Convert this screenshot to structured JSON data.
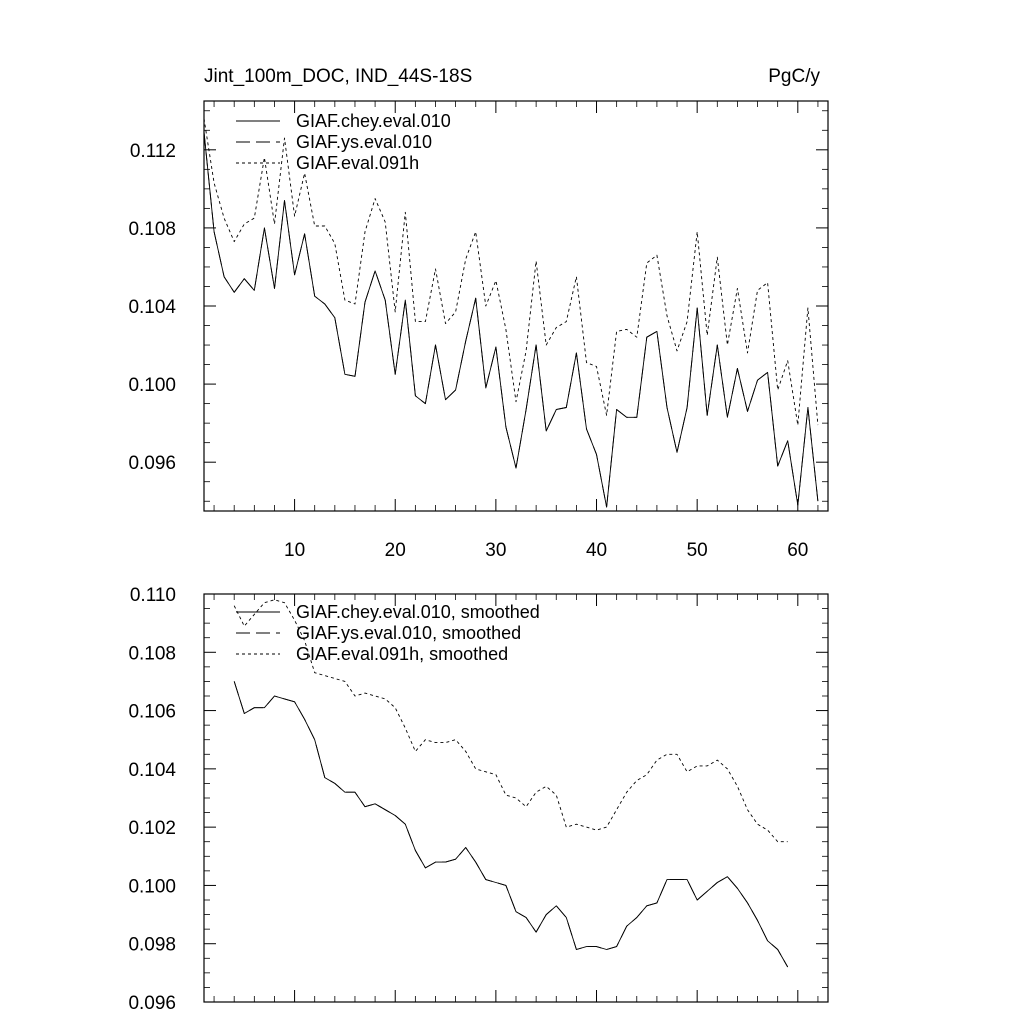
{
  "header": {
    "left_title": "Jint_100m_DOC, IND_44S-18S",
    "right_title": "PgC/y"
  },
  "chart_data": [
    {
      "type": "line",
      "title": "Jint_100m_DOC, IND_44S-18S",
      "units": "PgC/y",
      "xlabel": "",
      "ylabel": "",
      "xlim": [
        1,
        63
      ],
      "ylim": [
        0.0935,
        0.1145
      ],
      "xticks": [
        10,
        20,
        30,
        40,
        50,
        60
      ],
      "xtick_labels": [
        "10",
        "20",
        "30",
        "40",
        "50",
        "60"
      ],
      "yticks": [
        0.096,
        0.1,
        0.104,
        0.108,
        0.112
      ],
      "ytick_labels": [
        "0.096",
        "0.100",
        "0.104",
        "0.108",
        "0.112"
      ],
      "grid": false,
      "legend_position": "top-left",
      "series": [
        {
          "name": "GIAF.chey.eval.010",
          "style": "solid",
          "x": [
            1,
            2,
            3,
            4,
            5,
            6,
            7,
            8,
            9,
            10,
            11,
            12,
            13,
            14,
            15,
            16,
            17,
            18,
            19,
            20,
            21,
            22,
            23,
            24,
            25,
            26,
            27,
            28,
            29,
            30,
            31,
            32,
            33,
            34,
            35,
            36,
            37,
            38,
            39,
            40,
            41,
            42,
            43,
            44,
            45,
            46,
            47,
            48,
            49,
            50,
            51,
            52,
            53,
            54,
            55,
            56,
            57,
            58,
            59,
            60,
            61,
            62
          ],
          "values": [
            0.1129,
            0.1078,
            0.1055,
            0.1047,
            0.1054,
            0.1048,
            0.108,
            0.1049,
            0.1094,
            0.1056,
            0.1077,
            0.1045,
            0.1041,
            0.1034,
            0.1005,
            0.1004,
            0.1042,
            0.1058,
            0.1043,
            0.1005,
            0.1043,
            0.0994,
            0.099,
            0.102,
            0.0992,
            0.0997,
            0.1022,
            0.1044,
            0.0998,
            0.1019,
            0.0978,
            0.0957,
            0.0987,
            0.102,
            0.0976,
            0.0987,
            0.0988,
            0.1016,
            0.0977,
            0.0964,
            0.0937,
            0.0987,
            0.0983,
            0.0983,
            0.1024,
            0.1027,
            0.0988,
            0.0965,
            0.0988,
            0.1039,
            0.0984,
            0.102,
            0.0983,
            0.1008,
            0.0986,
            0.1002,
            0.1006,
            0.0958,
            0.0971,
            0.0938,
            0.0988,
            0.094
          ],
          "color": "#000000"
        },
        {
          "name": "GIAF.ys.eval.010",
          "style": "longdash",
          "x": [
            1,
            2,
            3,
            4,
            5,
            6,
            7,
            8,
            9,
            10,
            11,
            12,
            13,
            14,
            15,
            16,
            17,
            18,
            19,
            20,
            21,
            22,
            23,
            24,
            25,
            26,
            27,
            28,
            29,
            30,
            31,
            32,
            33,
            34,
            35,
            36,
            37,
            38,
            39,
            40,
            41,
            42,
            43,
            44,
            45,
            46,
            47,
            48,
            49,
            50,
            51,
            52,
            53,
            54,
            55,
            56,
            57,
            58,
            59,
            60,
            61,
            62
          ],
          "values": [
            0.1129,
            0.1078,
            0.1055,
            0.1047,
            0.1054,
            0.1048,
            0.108,
            0.1049,
            0.1094,
            0.1056,
            0.1077,
            0.1045,
            0.1041,
            0.1034,
            0.1005,
            0.1004,
            0.1042,
            0.1058,
            0.1043,
            0.1005,
            0.1043,
            0.0994,
            0.099,
            0.102,
            0.0992,
            0.0997,
            0.1022,
            0.1044,
            0.0998,
            0.1019,
            0.0978,
            0.0957,
            0.0987,
            0.102,
            0.0976,
            0.0987,
            0.0988,
            0.1016,
            0.0977,
            0.0964,
            0.0937,
            0.0987,
            0.0983,
            0.0983,
            0.1024,
            0.1027,
            0.0988,
            0.0965,
            0.0988,
            0.1039,
            0.0984,
            0.102,
            0.0983,
            0.1008,
            0.0986,
            0.1002,
            0.1006,
            0.0958,
            0.0971,
            0.0938,
            0.0988,
            0.094
          ],
          "color": "#000000"
        },
        {
          "name": "GIAF.eval.091h",
          "style": "dotted",
          "x": [
            1,
            2,
            3,
            4,
            5,
            6,
            7,
            8,
            9,
            10,
            11,
            12,
            13,
            14,
            15,
            16,
            17,
            18,
            19,
            20,
            21,
            22,
            23,
            24,
            25,
            26,
            27,
            28,
            29,
            30,
            31,
            32,
            33,
            34,
            35,
            36,
            37,
            38,
            39,
            40,
            41,
            42,
            43,
            44,
            45,
            46,
            47,
            48,
            49,
            50,
            51,
            52,
            53,
            54,
            55,
            56,
            57,
            58,
            59,
            60,
            61,
            62
          ],
          "values": [
            0.1136,
            0.1103,
            0.1085,
            0.1073,
            0.1082,
            0.1085,
            0.1116,
            0.1082,
            0.1126,
            0.1086,
            0.1108,
            0.1081,
            0.1081,
            0.1072,
            0.1043,
            0.1041,
            0.1078,
            0.1095,
            0.1083,
            0.1037,
            0.1088,
            0.1032,
            0.1032,
            0.1059,
            0.1031,
            0.1037,
            0.1064,
            0.1078,
            0.104,
            0.1053,
            0.1028,
            0.0991,
            0.1017,
            0.1063,
            0.102,
            0.1029,
            0.1032,
            0.1055,
            0.1011,
            0.1009,
            0.0984,
            0.1027,
            0.1028,
            0.1024,
            0.1062,
            0.1066,
            0.1035,
            0.1017,
            0.1032,
            0.1078,
            0.1025,
            0.1065,
            0.102,
            0.1049,
            0.1016,
            0.1048,
            0.1052,
            0.0997,
            0.1012,
            0.0979,
            0.1039,
            0.0979
          ],
          "color": "#000000"
        }
      ]
    },
    {
      "type": "line",
      "title": "",
      "xlabel": "",
      "ylabel": "",
      "xlim": [
        1,
        63
      ],
      "ylim": [
        0.096,
        0.11
      ],
      "xticks": [
        10,
        20,
        30,
        40,
        50,
        60
      ],
      "xtick_labels": [],
      "yticks": [
        0.096,
        0.098,
        0.1,
        0.102,
        0.104,
        0.106,
        0.108,
        0.11
      ],
      "ytick_labels": [
        "0.096",
        "0.098",
        "0.100",
        "0.102",
        "0.104",
        "0.106",
        "0.108",
        "0.110"
      ],
      "grid": false,
      "legend_position": "top-left",
      "series": [
        {
          "name": "GIAF.chey.eval.010, smoothed",
          "style": "solid",
          "x": [
            4,
            5,
            6,
            7,
            8,
            9,
            10,
            11,
            12,
            13,
            14,
            15,
            16,
            17,
            18,
            19,
            20,
            21,
            22,
            23,
            24,
            25,
            26,
            27,
            28,
            29,
            30,
            31,
            32,
            33,
            34,
            35,
            36,
            37,
            38,
            39,
            40,
            41,
            42,
            43,
            44,
            45,
            46,
            47,
            48,
            49,
            50,
            51,
            52,
            53,
            54,
            55,
            56,
            57,
            58,
            59
          ],
          "values": [
            0.107,
            0.1059,
            0.1061,
            0.1061,
            0.1065,
            0.1064,
            0.1063,
            0.1057,
            0.105,
            0.1037,
            0.1035,
            0.1032,
            0.1032,
            0.1027,
            0.1028,
            0.1026,
            0.1024,
            0.1021,
            0.1012,
            0.1006,
            0.1008,
            0.1008,
            0.1009,
            0.1013,
            0.1008,
            0.1002,
            0.1001,
            0.1,
            0.0991,
            0.0989,
            0.0984,
            0.099,
            0.0993,
            0.0989,
            0.0978,
            0.0979,
            0.0979,
            0.0978,
            0.0979,
            0.0986,
            0.0989,
            0.0993,
            0.0994,
            0.1002,
            0.1002,
            0.1002,
            0.0995,
            0.0998,
            0.1001,
            0.1003,
            0.0999,
            0.0994,
            0.0988,
            0.0981,
            0.0978,
            0.0972
          ],
          "color": "#000000"
        },
        {
          "name": "GIAF.ys.eval.010, smoothed",
          "style": "longdash",
          "x": [
            4,
            5,
            6,
            7,
            8,
            9,
            10,
            11,
            12,
            13,
            14,
            15,
            16,
            17,
            18,
            19,
            20,
            21,
            22,
            23,
            24,
            25,
            26,
            27,
            28,
            29,
            30,
            31,
            32,
            33,
            34,
            35,
            36,
            37,
            38,
            39,
            40,
            41,
            42,
            43,
            44,
            45,
            46,
            47,
            48,
            49,
            50,
            51,
            52,
            53,
            54,
            55,
            56,
            57,
            58,
            59
          ],
          "values": [
            0.107,
            0.1059,
            0.1061,
            0.1061,
            0.1065,
            0.1064,
            0.1063,
            0.1057,
            0.105,
            0.1037,
            0.1035,
            0.1032,
            0.1032,
            0.1027,
            0.1028,
            0.1026,
            0.1024,
            0.1021,
            0.1012,
            0.1006,
            0.1008,
            0.1008,
            0.1009,
            0.1013,
            0.1008,
            0.1002,
            0.1001,
            0.1,
            0.0991,
            0.0989,
            0.0984,
            0.099,
            0.0993,
            0.0989,
            0.0978,
            0.0979,
            0.0979,
            0.0978,
            0.0979,
            0.0986,
            0.0989,
            0.0993,
            0.0994,
            0.1002,
            0.1002,
            0.1002,
            0.0995,
            0.0998,
            0.1001,
            0.1003,
            0.0999,
            0.0994,
            0.0988,
            0.0981,
            0.0978,
            0.0972
          ],
          "color": "#000000"
        },
        {
          "name": "GIAF.eval.091h, smoothed",
          "style": "dotted",
          "x": [
            4,
            5,
            6,
            7,
            8,
            9,
            10,
            11,
            12,
            13,
            14,
            15,
            16,
            17,
            18,
            19,
            20,
            21,
            22,
            23,
            24,
            25,
            26,
            27,
            28,
            29,
            30,
            31,
            32,
            33,
            34,
            35,
            36,
            37,
            38,
            39,
            40,
            41,
            42,
            43,
            44,
            45,
            46,
            47,
            48,
            49,
            50,
            51,
            52,
            53,
            54,
            55,
            56,
            57,
            58,
            59
          ],
          "values": [
            0.1096,
            0.1089,
            0.1093,
            0.1097,
            0.1098,
            0.1097,
            0.1091,
            0.1084,
            0.1073,
            0.1072,
            0.1071,
            0.107,
            0.1065,
            0.1066,
            0.1065,
            0.1064,
            0.1061,
            0.1054,
            0.1046,
            0.105,
            0.1049,
            0.1049,
            0.105,
            0.1046,
            0.104,
            0.1039,
            0.1038,
            0.1031,
            0.103,
            0.1027,
            0.1032,
            0.1034,
            0.1031,
            0.102,
            0.1021,
            0.102,
            0.1019,
            0.102,
            0.1026,
            0.1032,
            0.1036,
            0.1038,
            0.1043,
            0.1045,
            0.1045,
            0.1039,
            0.1041,
            0.1041,
            0.1043,
            0.104,
            0.1034,
            0.1026,
            0.1021,
            0.1019,
            0.1015,
            0.1015
          ],
          "color": "#000000"
        }
      ]
    }
  ]
}
